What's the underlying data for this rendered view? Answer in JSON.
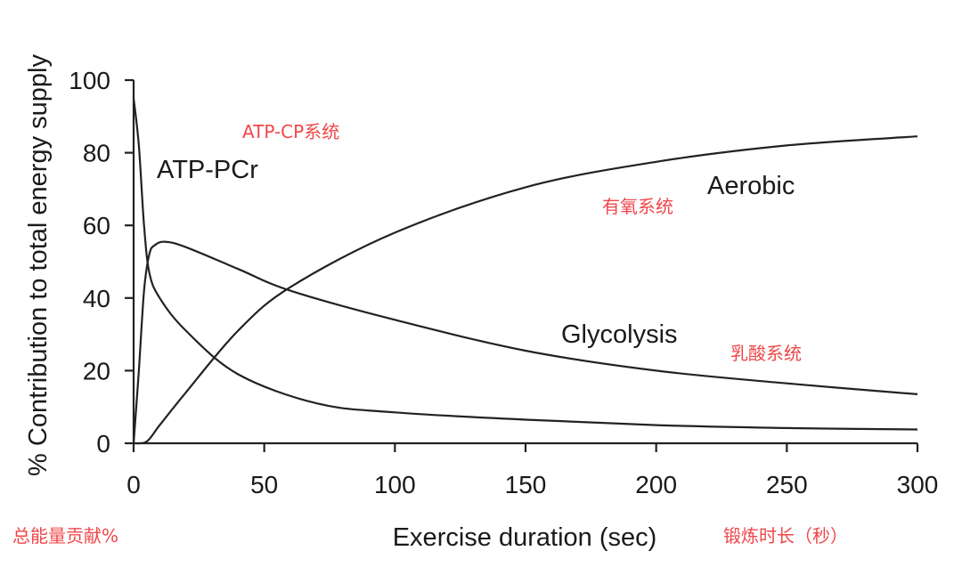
{
  "chart_data": {
    "type": "line",
    "title": "",
    "xlabel": "Exercise duration (sec)",
    "ylabel": "% Contribution to total energy supply",
    "xlim": [
      0,
      300
    ],
    "ylim": [
      0,
      100
    ],
    "xticks": [
      "0",
      "50",
      "100",
      "150",
      "200",
      "250",
      "300"
    ],
    "yticks": [
      "0",
      "20",
      "40",
      "60",
      "80",
      "100"
    ],
    "grid": false,
    "series": [
      {
        "name": "ATP-PCr",
        "x": [
          0,
          2,
          4,
          6,
          10,
          20,
          40,
          70,
          100,
          150,
          200,
          250,
          300
        ],
        "y": [
          95,
          82,
          60,
          47,
          40,
          31,
          19,
          11,
          8.5,
          6.5,
          5,
          4.2,
          3.8
        ]
      },
      {
        "name": "Glycolysis",
        "x": [
          0,
          2,
          4,
          6,
          8,
          12,
          20,
          40,
          60,
          100,
          150,
          200,
          250,
          300
        ],
        "y": [
          0,
          20,
          42,
          52,
          54.5,
          55.5,
          54,
          48,
          42,
          34,
          25.5,
          20,
          16.5,
          13.5
        ]
      },
      {
        "name": "Aerobic",
        "x": [
          0,
          5,
          10,
          20,
          40,
          60,
          100,
          150,
          200,
          250,
          300
        ],
        "y": [
          0,
          0.5,
          5,
          14,
          31,
          43,
          58,
          70.5,
          77.5,
          82,
          84.5
        ]
      }
    ],
    "series_labels": {
      "ATP-PCr": "ATP-PCr",
      "Glycolysis": "Glycolysis",
      "Aerobic": "Aerobic"
    },
    "annotations": {
      "atp_cp": "ATP-CP系统",
      "aerobic": "有氧系统",
      "lactic": "乳酸系统",
      "total_energy": "总能量贡献%",
      "duration": "锻炼时长（秒）"
    },
    "annotation_color": "#f0474a",
    "line_color": "#222222"
  }
}
